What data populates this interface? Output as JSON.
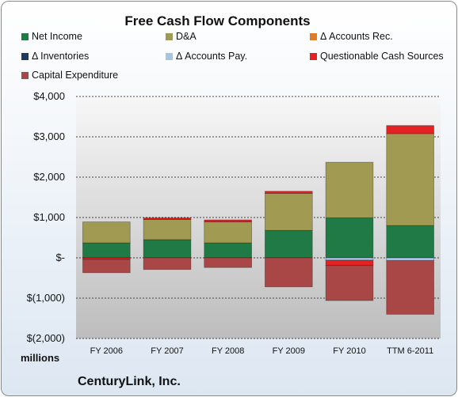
{
  "chart_data": {
    "type": "bar",
    "stacked": true,
    "title": "Free Cash Flow Components",
    "categories": [
      "FY 2006",
      "FY 2007",
      "FY 2008",
      "FY 2009",
      "FY 2010",
      "TTM 6-2011"
    ],
    "ylim": [
      -2000,
      4000
    ],
    "yticks": [
      4000,
      3000,
      2000,
      1000,
      0,
      -1000,
      -2000
    ],
    "ytick_labels": [
      "$4,000",
      "$3,000",
      "$2,000",
      "$1,000",
      "$-",
      "$(1,000)",
      "$(2,000)"
    ],
    "units_label": "millions",
    "grid": true,
    "legend_position": "top",
    "series": [
      {
        "name": "Net Income",
        "color": "#1f7a45",
        "values": [
          370,
          450,
          370,
          680,
          990,
          800
        ]
      },
      {
        "name": "D&A",
        "color": "#a09a52",
        "values": [
          520,
          500,
          520,
          920,
          1380,
          2280
        ]
      },
      {
        "name": "Δ Accounts Rec.",
        "color": "#e07b28",
        "values": [
          0,
          0,
          0,
          0,
          0,
          0
        ]
      },
      {
        "name": "Δ Inventories",
        "color": "#1e3a5f",
        "values": [
          0,
          0,
          0,
          0,
          0,
          0
        ]
      },
      {
        "name": "Δ Accounts Pay.",
        "color": "#a7c4e2",
        "values": [
          0,
          0,
          0,
          0,
          -60,
          -70
        ]
      },
      {
        "name": "Questionable Cash Sources",
        "color": "#e52222",
        "values": [
          -40,
          40,
          50,
          50,
          -130,
          200
        ]
      },
      {
        "name": "Capital Expenditure",
        "color": "#a94646",
        "values": [
          -330,
          -290,
          -240,
          -720,
          -870,
          -1330
        ]
      }
    ]
  },
  "footer": {
    "company": "CenturyLink, Inc."
  }
}
